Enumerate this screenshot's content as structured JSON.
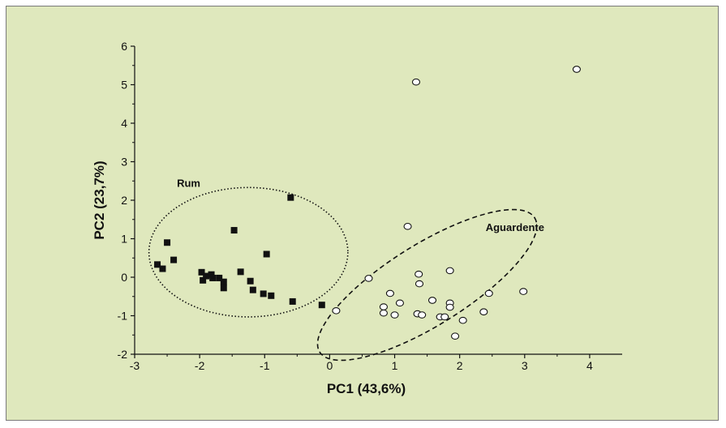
{
  "chart_data": {
    "type": "scatter",
    "xlabel": "PC1 (43,6%)",
    "ylabel": "PC2 (23,7%)",
    "xlim": [
      -3,
      4.5
    ],
    "ylim": [
      -2,
      6
    ],
    "xticks": [
      -3,
      -2,
      -1,
      0,
      1,
      2,
      3,
      4
    ],
    "yticks": [
      -2,
      -1,
      0,
      1,
      2,
      3,
      4,
      5,
      6
    ],
    "grid": false,
    "series": [
      {
        "name": "Rum",
        "marker": "filled-square",
        "color": "#111111",
        "points": [
          [
            -2.65,
            0.33
          ],
          [
            -2.57,
            0.22
          ],
          [
            -2.5,
            0.9
          ],
          [
            -2.4,
            0.45
          ],
          [
            -1.97,
            0.13
          ],
          [
            -1.95,
            -0.08
          ],
          [
            -1.9,
            0.03
          ],
          [
            -1.82,
            0.07
          ],
          [
            -1.8,
            -0.02
          ],
          [
            -1.7,
            -0.02
          ],
          [
            -1.63,
            -0.12
          ],
          [
            -1.63,
            -0.28
          ],
          [
            -1.47,
            1.22
          ],
          [
            -1.37,
            0.14
          ],
          [
            -1.22,
            -0.1
          ],
          [
            -1.18,
            -0.33
          ],
          [
            -1.02,
            -0.43
          ],
          [
            -0.97,
            0.6
          ],
          [
            -0.9,
            -0.48
          ],
          [
            -0.6,
            2.07
          ],
          [
            -0.57,
            -0.63
          ],
          [
            -0.12,
            -0.72
          ]
        ]
      },
      {
        "name": "Aguardente",
        "marker": "open-circle",
        "color": "#111111",
        "points": [
          [
            0.1,
            -0.87
          ],
          [
            0.6,
            -0.03
          ],
          [
            0.83,
            -0.77
          ],
          [
            0.83,
            -0.93
          ],
          [
            0.93,
            -0.42
          ],
          [
            1.0,
            -0.98
          ],
          [
            1.08,
            -0.67
          ],
          [
            1.2,
            1.32
          ],
          [
            1.33,
            5.07
          ],
          [
            1.35,
            -0.95
          ],
          [
            1.37,
            0.08
          ],
          [
            1.38,
            -0.17
          ],
          [
            1.42,
            -0.98
          ],
          [
            1.58,
            -0.6
          ],
          [
            1.7,
            -1.03
          ],
          [
            1.77,
            -1.03
          ],
          [
            1.85,
            0.17
          ],
          [
            1.85,
            -0.67
          ],
          [
            1.85,
            -0.78
          ],
          [
            1.93,
            -1.53
          ],
          [
            2.05,
            -1.12
          ],
          [
            2.37,
            -0.9
          ],
          [
            2.45,
            -0.42
          ],
          [
            2.98,
            -0.37
          ],
          [
            3.8,
            5.4
          ]
        ]
      }
    ],
    "annotations": [
      {
        "text": "Rum",
        "x": -2.35,
        "y": 2.35
      },
      {
        "text": "Aguardente",
        "x": 2.4,
        "y": 1.2
      }
    ],
    "ellipses": [
      {
        "label": "Rum",
        "center": [
          -1.25,
          0.65
        ],
        "semi_axes": [
          1.53,
          1.68
        ],
        "rotation_deg": 0,
        "style": "dotted"
      },
      {
        "label": "Aguardente",
        "center": [
          1.5,
          -0.2
        ],
        "semi_axes": [
          1.95,
          1.05
        ],
        "rotation_deg": 32,
        "style": "dashed"
      }
    ]
  }
}
